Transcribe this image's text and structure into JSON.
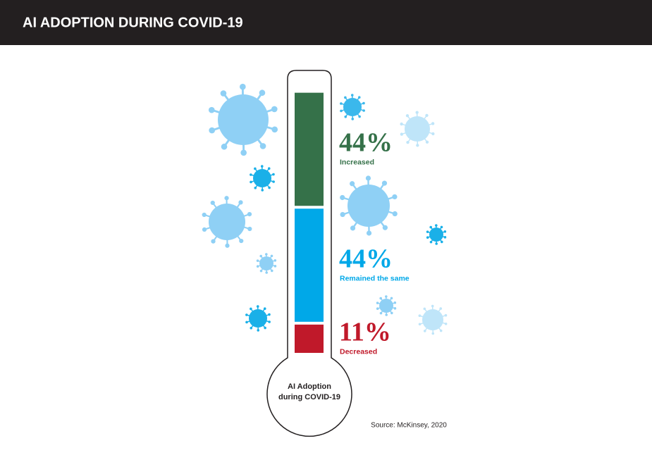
{
  "chart_data": {
    "type": "thermometer",
    "title": "AI ADOPTION DURING COVID-19",
    "categories": [
      "Increased",
      "Remained the same",
      "Decreased"
    ],
    "values": [
      44,
      44,
      11
    ],
    "value_labels": [
      "44%",
      "44%",
      "11%"
    ],
    "colors": [
      "#357149",
      "#00a8e8",
      "#c0192a"
    ],
    "bulb_label": [
      "AI Adoption",
      "during COVID-19"
    ],
    "source": "Source: McKinsey, 2020"
  }
}
